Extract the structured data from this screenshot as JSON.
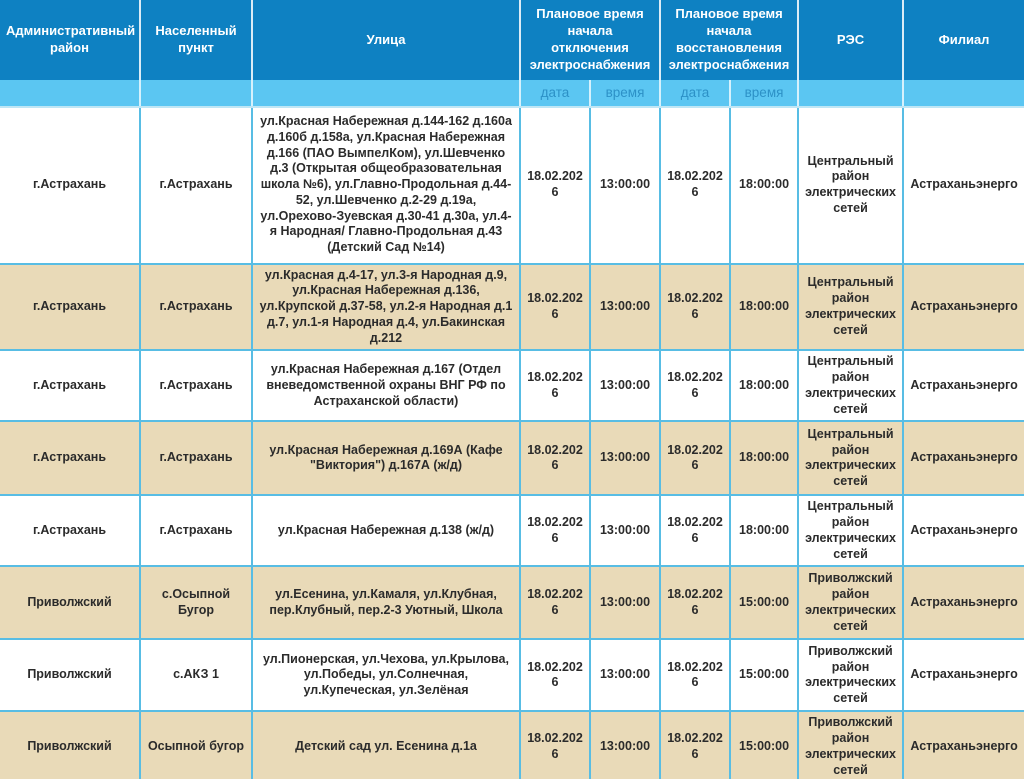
{
  "table": {
    "columns": {
      "district": "Административный район",
      "settlement": "Населенный пункт",
      "street": "Улица",
      "outage_start": "Плановое время начала отключения электроснабжения",
      "restore_start": "Плановое время начала восстановления электроснабжения",
      "res": "РЭС",
      "branch": "Филиал",
      "date": "дата",
      "time": "время"
    },
    "rows": [
      {
        "district": "г.Астрахань",
        "settlement": "г.Астрахань",
        "street": "ул.Красная Набережная д.144-162 д.160а д.160б д.158а, ул.Красная Набережная д.166 (ПАО ВымпелКом), ул.Шевченко д.3 (Открытая общеобразовательная школа №6), ул.Главно-Продольная д.44-52, ул.Шевченко д.2-29 д.19а, ул.Орехово-Зуевская д.30-41 д.30а, ул.4-я Народная/ Главно-Продольная д.43 (Детский Сад №14)",
        "off_date": "18.02.2026",
        "off_time": "13:00:00",
        "on_date": "18.02.2026",
        "on_time": "18:00:00",
        "res": "Центральный район электрических сетей",
        "branch": "Астраханьэнерго"
      },
      {
        "district": "г.Астрахань",
        "settlement": "г.Астрахань",
        "street": "ул.Красная д.4-17, ул.3-я Народная д.9, ул.Красная Набережная д.136, ул.Крупской д.37-58, ул.2-я Народная д.1 д.7, ул.1-я Народная д.4, ул.Бакинская д.212",
        "off_date": "18.02.2026",
        "off_time": "13:00:00",
        "on_date": "18.02.2026",
        "on_time": "18:00:00",
        "res": "Центральный район электрических сетей",
        "branch": "Астраханьэнерго"
      },
      {
        "district": "г.Астрахань",
        "settlement": "г.Астрахань",
        "street": "ул.Красная Набережная д.167 (Отдел вневедомственной охраны ВНГ РФ по Астраханской области)",
        "off_date": "18.02.2026",
        "off_time": "13:00:00",
        "on_date": "18.02.2026",
        "on_time": "18:00:00",
        "res": "Центральный район электрических сетей",
        "branch": "Астраханьэнерго"
      },
      {
        "district": "г.Астрахань",
        "settlement": "г.Астрахань",
        "street": "ул.Красная Набережная д.169А (Кафе \"Виктория\") д.167А (ж/д)",
        "off_date": "18.02.2026",
        "off_time": "13:00:00",
        "on_date": "18.02.2026",
        "on_time": "18:00:00",
        "res": "Центральный район электрических сетей",
        "branch": "Астраханьэнерго"
      },
      {
        "district": "г.Астрахань",
        "settlement": "г.Астрахань",
        "street": "ул.Красная Набережная д.138 (ж/д)",
        "off_date": "18.02.2026",
        "off_time": "13:00:00",
        "on_date": "18.02.2026",
        "on_time": "18:00:00",
        "res": "Центральный район электрических сетей",
        "branch": "Астраханьэнерго"
      },
      {
        "district": "Приволжский",
        "settlement": "с.Осыпной Бугор",
        "street": "ул.Есенина, ул.Камаля, ул.Клубная, пер.Клубный, пер.2-3 Уютный, Школа",
        "off_date": "18.02.2026",
        "off_time": "13:00:00",
        "on_date": "18.02.2026",
        "on_time": "15:00:00",
        "res": "Приволжский район электрических сетей",
        "branch": "Астраханьэнерго"
      },
      {
        "district": "Приволжский",
        "settlement": "с.АКЗ 1",
        "street": "ул.Пионерская, ул.Чехова, ул.Крылова, ул.Победы, ул.Солнечная, ул.Купеческая, ул.Зелёная",
        "off_date": "18.02.2026",
        "off_time": "13:00:00",
        "on_date": "18.02.2026",
        "on_time": "15:00:00",
        "res": "Приволжский район электрических сетей",
        "branch": "Астраханьэнерго"
      },
      {
        "district": "Приволжский",
        "settlement": "Осыпной бугор",
        "street": "Детский сад ул. Есенина д.1а",
        "off_date": "18.02.2026",
        "off_time": "13:00:00",
        "on_date": "18.02.2026",
        "on_time": "15:00:00",
        "res": "Приволжский район электрических сетей",
        "branch": "Астраханьэнерго"
      }
    ]
  },
  "colors": {
    "header_bg": "#0e81c2",
    "subheader_bg": "#5bc6f2",
    "subheader_text": "#2c91c7",
    "row_bg": "#ffffff",
    "row_alt_bg": "#e9dab8",
    "grid_border": "#58bde4",
    "text": "#2b2b2b"
  }
}
